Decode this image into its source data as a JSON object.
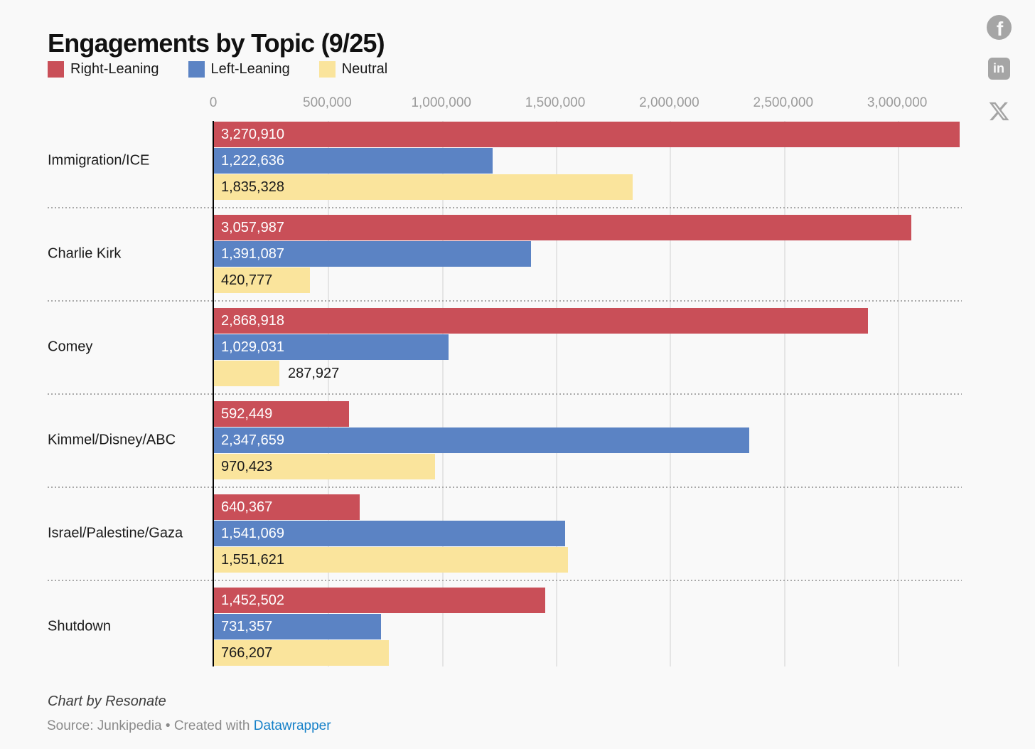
{
  "title": "Engagements by Topic (9/25)",
  "legend": [
    {
      "label": "Right-Leaning",
      "color": "#c94f58"
    },
    {
      "label": "Left-Leaning",
      "color": "#5b83c4"
    },
    {
      "label": "Neutral",
      "color": "#fae49c"
    }
  ],
  "social_icons": [
    "facebook",
    "linkedin",
    "x"
  ],
  "social_linkedin_text": "in",
  "social_facebook_text": "f",
  "chart_data": {
    "type": "bar",
    "orientation": "horizontal",
    "title": "Engagements by Topic (9/25)",
    "xlabel": "",
    "ylabel": "",
    "xlim": [
      0,
      3270910
    ],
    "grid": "vertical",
    "legend_position": "top-left",
    "value_labels": "inside-start",
    "categories": [
      "Immigration/ICE",
      "Charlie Kirk",
      "Comey",
      "Kimmel/Disney/ABC",
      "Israel/Palestine/Gaza",
      "Shutdown"
    ],
    "series": [
      {
        "name": "Right-Leaning",
        "color": "#c94f58",
        "label_color": "#ffffff",
        "values": [
          3270910,
          3057987,
          2868918,
          592449,
          640367,
          1452502
        ],
        "labels": [
          "3,270,910",
          "3,057,987",
          "2,868,918",
          "592,449",
          "640,367",
          "1,452,502"
        ]
      },
      {
        "name": "Left-Leaning",
        "color": "#5b83c4",
        "label_color": "#ffffff",
        "values": [
          1222636,
          1391087,
          1029031,
          2347659,
          1541069,
          731357
        ],
        "labels": [
          "1,222,636",
          "1,391,087",
          "1,029,031",
          "2,347,659",
          "1,541,069",
          "731,357"
        ]
      },
      {
        "name": "Neutral",
        "color": "#fae49c",
        "label_color": "#1a1a1a",
        "values": [
          1835328,
          420777,
          287927,
          970423,
          1551621,
          766207
        ],
        "labels": [
          "1,835,328",
          "420,777",
          "287,927",
          "970,423",
          "1,551,621",
          "766,207"
        ]
      }
    ],
    "ticks": [
      {
        "value": 0,
        "label": "0"
      },
      {
        "value": 500000,
        "label": "500,000"
      },
      {
        "value": 1000000,
        "label": "1,000,000"
      },
      {
        "value": 1500000,
        "label": "1,500,000"
      },
      {
        "value": 2000000,
        "label": "2,000,000"
      },
      {
        "value": 2500000,
        "label": "2,500,000"
      },
      {
        "value": 3000000,
        "label": "3,000,000"
      }
    ]
  },
  "footer": {
    "byline": "Chart by Resonate",
    "source_prefix": "Source: ",
    "source": "Junkipedia",
    "separator": " • ",
    "created_with": "Created with ",
    "link_label": "Datawrapper"
  }
}
